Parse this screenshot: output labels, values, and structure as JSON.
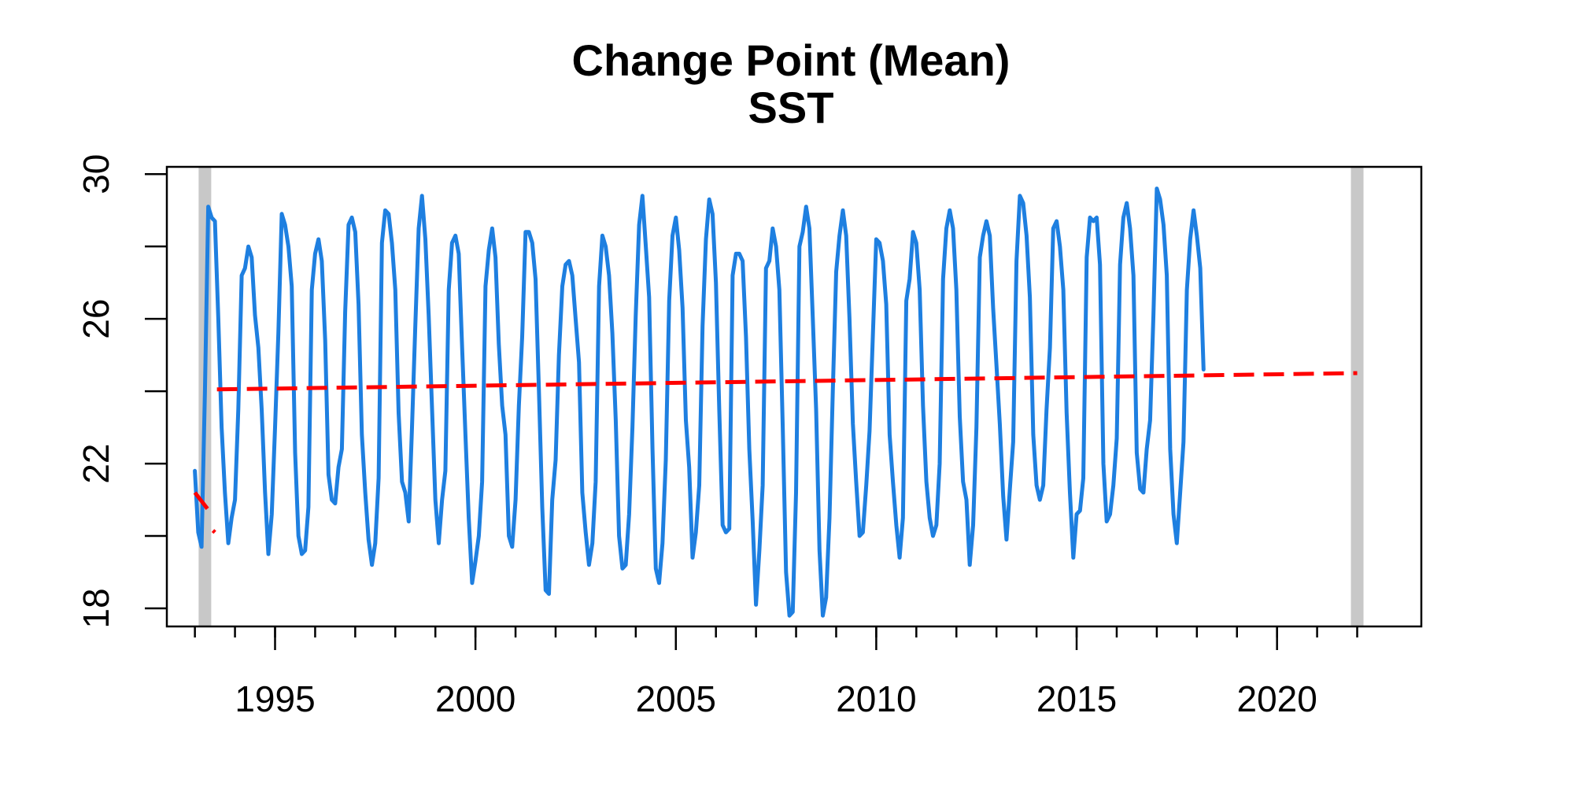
{
  "chart_data": {
    "type": "line",
    "title": "Change Point (Mean)",
    "subtitle": "SST",
    "xlabel": "",
    "ylabel": "",
    "xlim": [
      1992.3,
      2023.6
    ],
    "ylim": [
      17.5,
      30.2
    ],
    "x_ticks": [
      1995,
      2000,
      2005,
      2010,
      2015,
      2020
    ],
    "x_tick_labels": [
      "1995",
      "2000",
      "2005",
      "2010",
      "2015",
      "2020"
    ],
    "x_minor_ticks": [
      1993,
      1994,
      1995,
      1996,
      1997,
      1998,
      1999,
      2000,
      2001,
      2002,
      2003,
      2004,
      2005,
      2006,
      2007,
      2008,
      2009,
      2010,
      2011,
      2012,
      2013,
      2014,
      2015,
      2016,
      2017,
      2018,
      2019,
      2020,
      2021,
      2022
    ],
    "y_ticks": [
      18,
      22,
      26,
      30
    ],
    "y_tick_labels": [
      "18",
      "22",
      "26",
      "30"
    ],
    "y_minor_ticks": [
      18,
      20,
      22,
      24,
      26,
      28,
      30
    ],
    "grid": false,
    "series": [
      {
        "role": "observed",
        "color": "#1E7FE0",
        "x_start": 1993.0,
        "step": 0.083333,
        "y": [
          21.8,
          20.1,
          19.7,
          24.0,
          29.1,
          28.8,
          28.7,
          26.0,
          23.0,
          21.2,
          19.8,
          20.5,
          21.0,
          23.5,
          27.2,
          27.4,
          28.0,
          27.7,
          26.1,
          25.2,
          23.5,
          21.2,
          19.5,
          20.6,
          23.0,
          25.6,
          28.9,
          28.6,
          28.0,
          26.9,
          22.3,
          20.0,
          19.5,
          19.6,
          20.8,
          26.8,
          27.8,
          28.2,
          27.6,
          25.4,
          21.7,
          21.0,
          20.9,
          21.9,
          22.4,
          26.2,
          28.6,
          28.8,
          28.4,
          26.4,
          22.8,
          21.2,
          19.9,
          19.2,
          19.8,
          21.6,
          28.1,
          29.0,
          28.9,
          28.1,
          26.8,
          23.4,
          21.5,
          21.2,
          20.4,
          23.0,
          25.8,
          28.5,
          29.4,
          28.2,
          26.1,
          23.5,
          21.0,
          19.8,
          21.0,
          21.8,
          26.8,
          28.1,
          28.3,
          27.8,
          25.2,
          22.8,
          20.5,
          18.7,
          19.3,
          20.0,
          21.5,
          26.9,
          27.9,
          28.5,
          27.7,
          25.3,
          23.6,
          22.8,
          20.0,
          19.7,
          21.0,
          23.6,
          25.5,
          28.4,
          28.4,
          28.1,
          27.1,
          24.0,
          20.8,
          18.5,
          18.4,
          21.0,
          22.1,
          25.0,
          26.9,
          27.5,
          27.6,
          27.2,
          26.0,
          24.8,
          21.2,
          20.1,
          19.2,
          19.8,
          21.5,
          26.9,
          28.3,
          28.0,
          27.2,
          25.6,
          23.2,
          20.0,
          19.1,
          19.2,
          20.6,
          23.0,
          26.1,
          28.6,
          29.4,
          28.0,
          26.6,
          22.4,
          19.1,
          18.7,
          19.8,
          22.1,
          26.5,
          28.3,
          28.8,
          27.9,
          26.3,
          23.2,
          21.9,
          19.4,
          20.1,
          21.4,
          25.8,
          28.2,
          29.3,
          28.9,
          27.0,
          23.5,
          20.3,
          20.1,
          20.2,
          27.2,
          27.8,
          27.8,
          27.6,
          25.5,
          22.4,
          20.4,
          18.1,
          19.6,
          21.4,
          27.4,
          27.6,
          28.5,
          28.0,
          26.8,
          23.0,
          19.0,
          17.8,
          17.9,
          21.2,
          28.0,
          28.4,
          29.1,
          28.5,
          26.0,
          23.5,
          19.6,
          17.8,
          18.3,
          20.5,
          24.0,
          27.3,
          28.3,
          29.0,
          28.3,
          26.0,
          23.1,
          21.5,
          20.0,
          20.1,
          21.4,
          22.9,
          25.6,
          28.2,
          28.1,
          27.6,
          26.4,
          22.8,
          21.5,
          20.3,
          19.4,
          20.5,
          26.5,
          27.1,
          28.4,
          28.1,
          26.8,
          23.6,
          21.5,
          20.5,
          20.0,
          20.3,
          22.0,
          27.1,
          28.5,
          29.0,
          28.5,
          26.8,
          23.3,
          21.5,
          21.0,
          19.2,
          20.3,
          23.0,
          27.7,
          28.3,
          28.7,
          28.3,
          26.3,
          24.7,
          23.1,
          21.1,
          19.9,
          21.3,
          22.6,
          27.6,
          29.4,
          29.2,
          28.3,
          26.6,
          22.8,
          21.4,
          21.0,
          21.4,
          23.5,
          25.2,
          28.5,
          28.7,
          28.0,
          26.8,
          23.4,
          21.2,
          19.4,
          20.6,
          20.7,
          21.6,
          27.7,
          28.8,
          28.7,
          28.8,
          27.5,
          22.0,
          20.4,
          20.6,
          21.4,
          22.7,
          27.5,
          28.8,
          29.2,
          28.5,
          27.2,
          22.3,
          21.3,
          21.2,
          22.4,
          23.2,
          26.1,
          29.6,
          29.3,
          28.6,
          27.2,
          22.4,
          20.6,
          19.8,
          21.2,
          22.6,
          26.8,
          28.2,
          29.0,
          28.3,
          27.4,
          24.6
        ]
      }
    ],
    "change_points": [
      {
        "role": "segment-mean",
        "color": "#FF0000",
        "x": [
          1993.0,
          1993.35
        ],
        "y": [
          21.2,
          20.7
        ]
      },
      {
        "role": "segment-mean",
        "color": "#FF0000",
        "x": [
          1993.45,
          1993.5
        ],
        "y": [
          20.15,
          20.1
        ]
      },
      {
        "role": "segment-mean",
        "color": "#FF0000",
        "x": [
          1993.55,
          2022.0
        ],
        "y": [
          24.05,
          24.5
        ]
      }
    ],
    "boundaries": {
      "color": "#C8C8C8",
      "x": [
        1993.25,
        2022.0
      ]
    }
  }
}
